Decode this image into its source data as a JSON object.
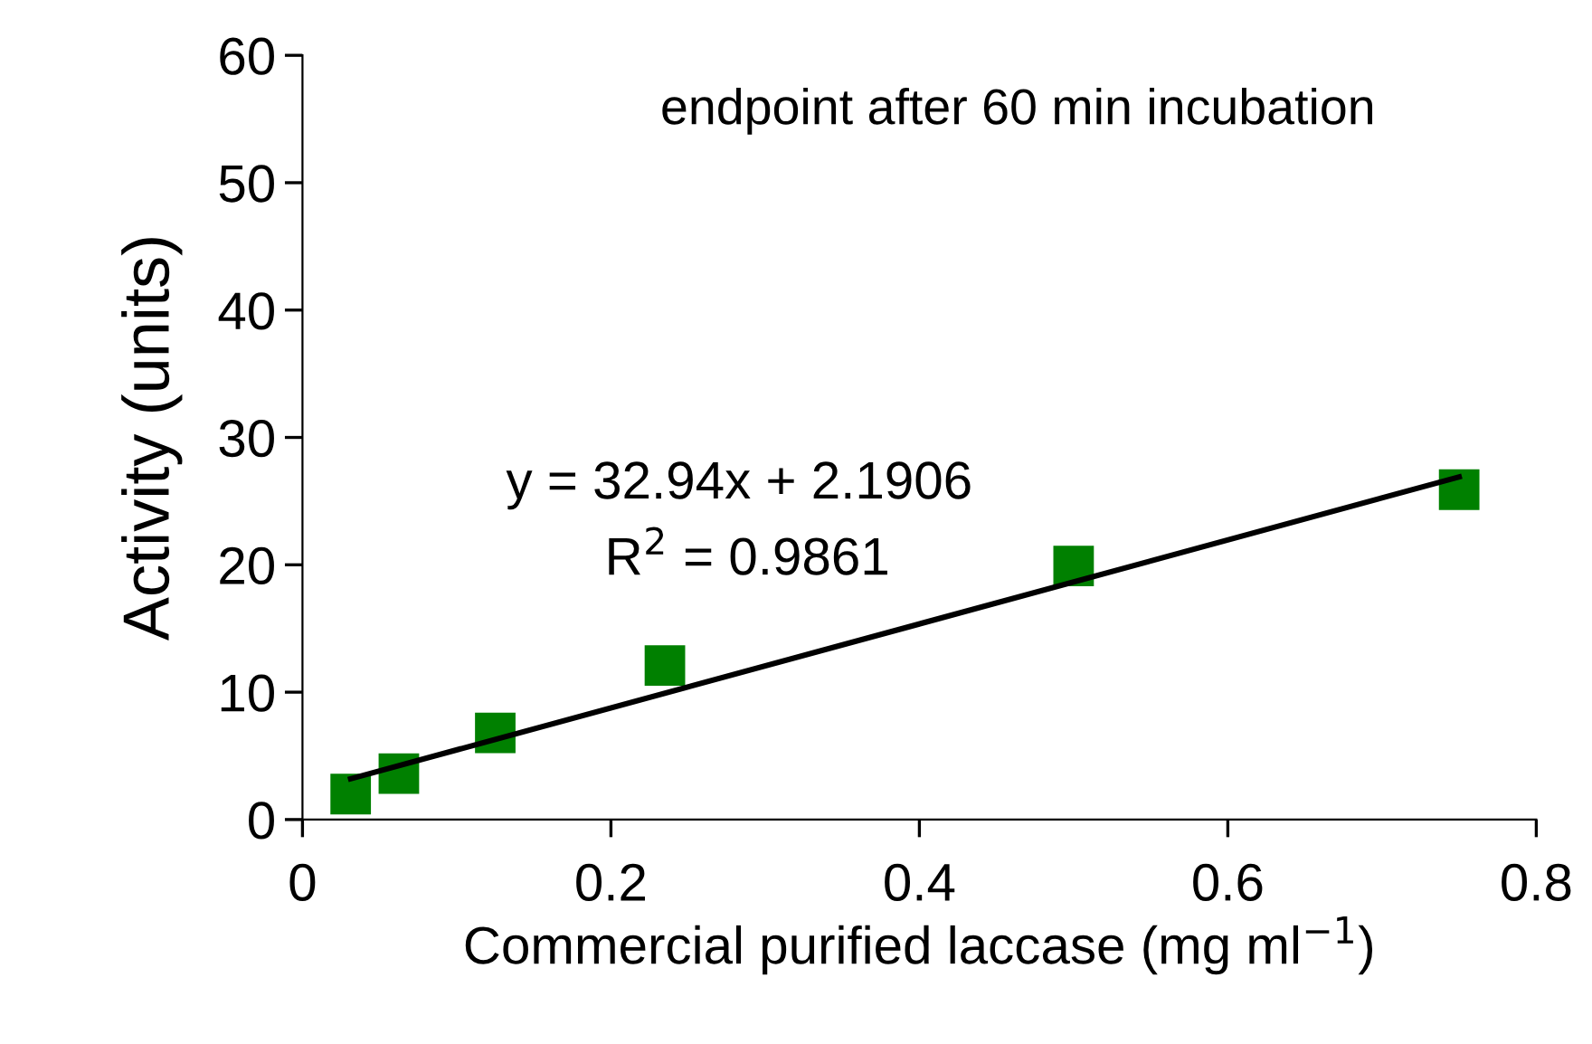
{
  "chart_data": {
    "type": "scatter",
    "xlabel": "Commercial purified laccase (mg ml$^{−1}$)",
    "ylabel": "Activity (units)",
    "xlim": [
      0,
      0.8
    ],
    "ylim": [
      0,
      60
    ],
    "xticks": [
      0,
      0.2,
      0.4,
      0.6,
      0.8
    ],
    "yticks": [
      0,
      10,
      20,
      30,
      40,
      50,
      60
    ],
    "grid": false,
    "legend": false,
    "annotations": [
      "endpoint after 60 min incubation",
      "y = 32.94x + 2.1906",
      "R$^{2}$ = 0.9861"
    ],
    "series": [
      {
        "color": "#008000",
        "marker": "square",
        "x": [
          0.03125,
          0.0625,
          0.125,
          0.235,
          0.5,
          0.75
        ],
        "values": [
          2.0,
          3.6,
          6.8,
          12.1,
          19.9,
          25.9
        ]
      },
      {
        "type": "line",
        "color": "#000000",
        "marker": "none",
        "line_style": "solid",
        "x": [
          0.03125,
          0.75
        ],
        "values": [
          3.2,
          26.9
        ]
      }
    ]
  }
}
